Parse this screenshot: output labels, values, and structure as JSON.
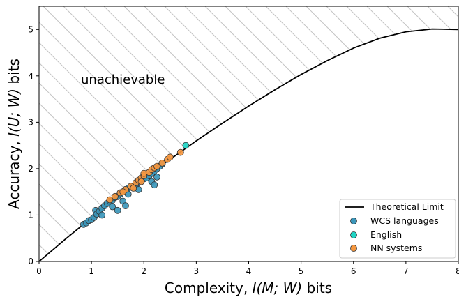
{
  "chart_data": {
    "type": "scatter",
    "xlabel_prefix": "Complexity, ",
    "xlabel_math": "I(M; W)",
    "xlabel_suffix": " bits",
    "ylabel_prefix": "Accuracy, ",
    "ylabel_math": "I(U; W)",
    "ylabel_suffix": " bits",
    "xlim": [
      0,
      8
    ],
    "ylim": [
      0,
      5.5
    ],
    "x_ticks": [
      "0",
      "1",
      "2",
      "3",
      "4",
      "5",
      "6",
      "7",
      "8"
    ],
    "y_ticks": [
      "0",
      "1",
      "2",
      "3",
      "4",
      "5"
    ],
    "grid": false,
    "annotation": "unachievable",
    "legend_position": "lower-right",
    "theoretical_limit": {
      "name": "Theoretical Limit",
      "color": "#000000",
      "points": [
        [
          0,
          0
        ],
        [
          0.5,
          0.48
        ],
        [
          1,
          0.94
        ],
        [
          1.5,
          1.37
        ],
        [
          2,
          1.8
        ],
        [
          2.5,
          2.2
        ],
        [
          3,
          2.6
        ],
        [
          3.5,
          2.98
        ],
        [
          4,
          3.35
        ],
        [
          4.5,
          3.7
        ],
        [
          5,
          4.03
        ],
        [
          5.5,
          4.33
        ],
        [
          6,
          4.6
        ],
        [
          6.5,
          4.81
        ],
        [
          7,
          4.95
        ],
        [
          7.5,
          5.01
        ],
        [
          8,
          5.0
        ]
      ]
    },
    "series": [
      {
        "name": "WCS languages",
        "color": "#3b96ba",
        "points": [
          [
            0.85,
            0.8
          ],
          [
            0.9,
            0.83
          ],
          [
            0.95,
            0.88
          ],
          [
            1.0,
            0.9
          ],
          [
            1.05,
            0.95
          ],
          [
            1.08,
            1.1
          ],
          [
            1.1,
            1.02
          ],
          [
            1.15,
            1.08
          ],
          [
            1.2,
            1.15
          ],
          [
            1.2,
            1.0
          ],
          [
            1.25,
            1.2
          ],
          [
            1.3,
            1.25
          ],
          [
            1.35,
            1.3
          ],
          [
            1.4,
            1.32
          ],
          [
            1.45,
            1.38
          ],
          [
            1.5,
            1.4
          ],
          [
            1.5,
            1.1
          ],
          [
            1.55,
            1.45
          ],
          [
            1.6,
            1.5
          ],
          [
            1.6,
            1.3
          ],
          [
            1.65,
            1.55
          ],
          [
            1.65,
            1.2
          ],
          [
            1.7,
            1.58
          ],
          [
            1.75,
            1.6
          ],
          [
            1.8,
            1.62
          ],
          [
            1.85,
            1.65
          ],
          [
            1.9,
            1.7
          ],
          [
            1.95,
            1.75
          ],
          [
            2.0,
            1.78
          ],
          [
            2.05,
            1.8
          ],
          [
            2.1,
            1.85
          ],
          [
            2.15,
            1.9
          ],
          [
            2.15,
            1.72
          ],
          [
            2.2,
            1.95
          ],
          [
            2.2,
            1.65
          ],
          [
            2.25,
            2.0
          ],
          [
            2.3,
            2.05
          ],
          [
            2.35,
            2.1
          ],
          [
            1.7,
            1.45
          ],
          [
            1.9,
            1.55
          ],
          [
            2.25,
            1.82
          ],
          [
            1.4,
            1.18
          ]
        ]
      },
      {
        "name": "English",
        "color": "#1fd4c4",
        "points": [
          [
            2.8,
            2.5
          ]
        ]
      },
      {
        "name": "NN systems",
        "color": "#f5973f",
        "points": [
          [
            1.35,
            1.33
          ],
          [
            1.45,
            1.4
          ],
          [
            1.55,
            1.48
          ],
          [
            1.65,
            1.55
          ],
          [
            1.75,
            1.62
          ],
          [
            1.8,
            1.58
          ],
          [
            1.85,
            1.7
          ],
          [
            1.9,
            1.75
          ],
          [
            1.95,
            1.8
          ],
          [
            2.0,
            1.85
          ],
          [
            2.0,
            1.9
          ],
          [
            2.1,
            1.92
          ],
          [
            2.15,
            1.98
          ],
          [
            2.2,
            2.02
          ],
          [
            2.25,
            2.05
          ],
          [
            2.35,
            2.12
          ],
          [
            2.45,
            2.2
          ],
          [
            2.5,
            2.25
          ],
          [
            2.7,
            2.35
          ],
          [
            1.6,
            1.5
          ],
          [
            1.95,
            1.72
          ]
        ]
      }
    ]
  }
}
